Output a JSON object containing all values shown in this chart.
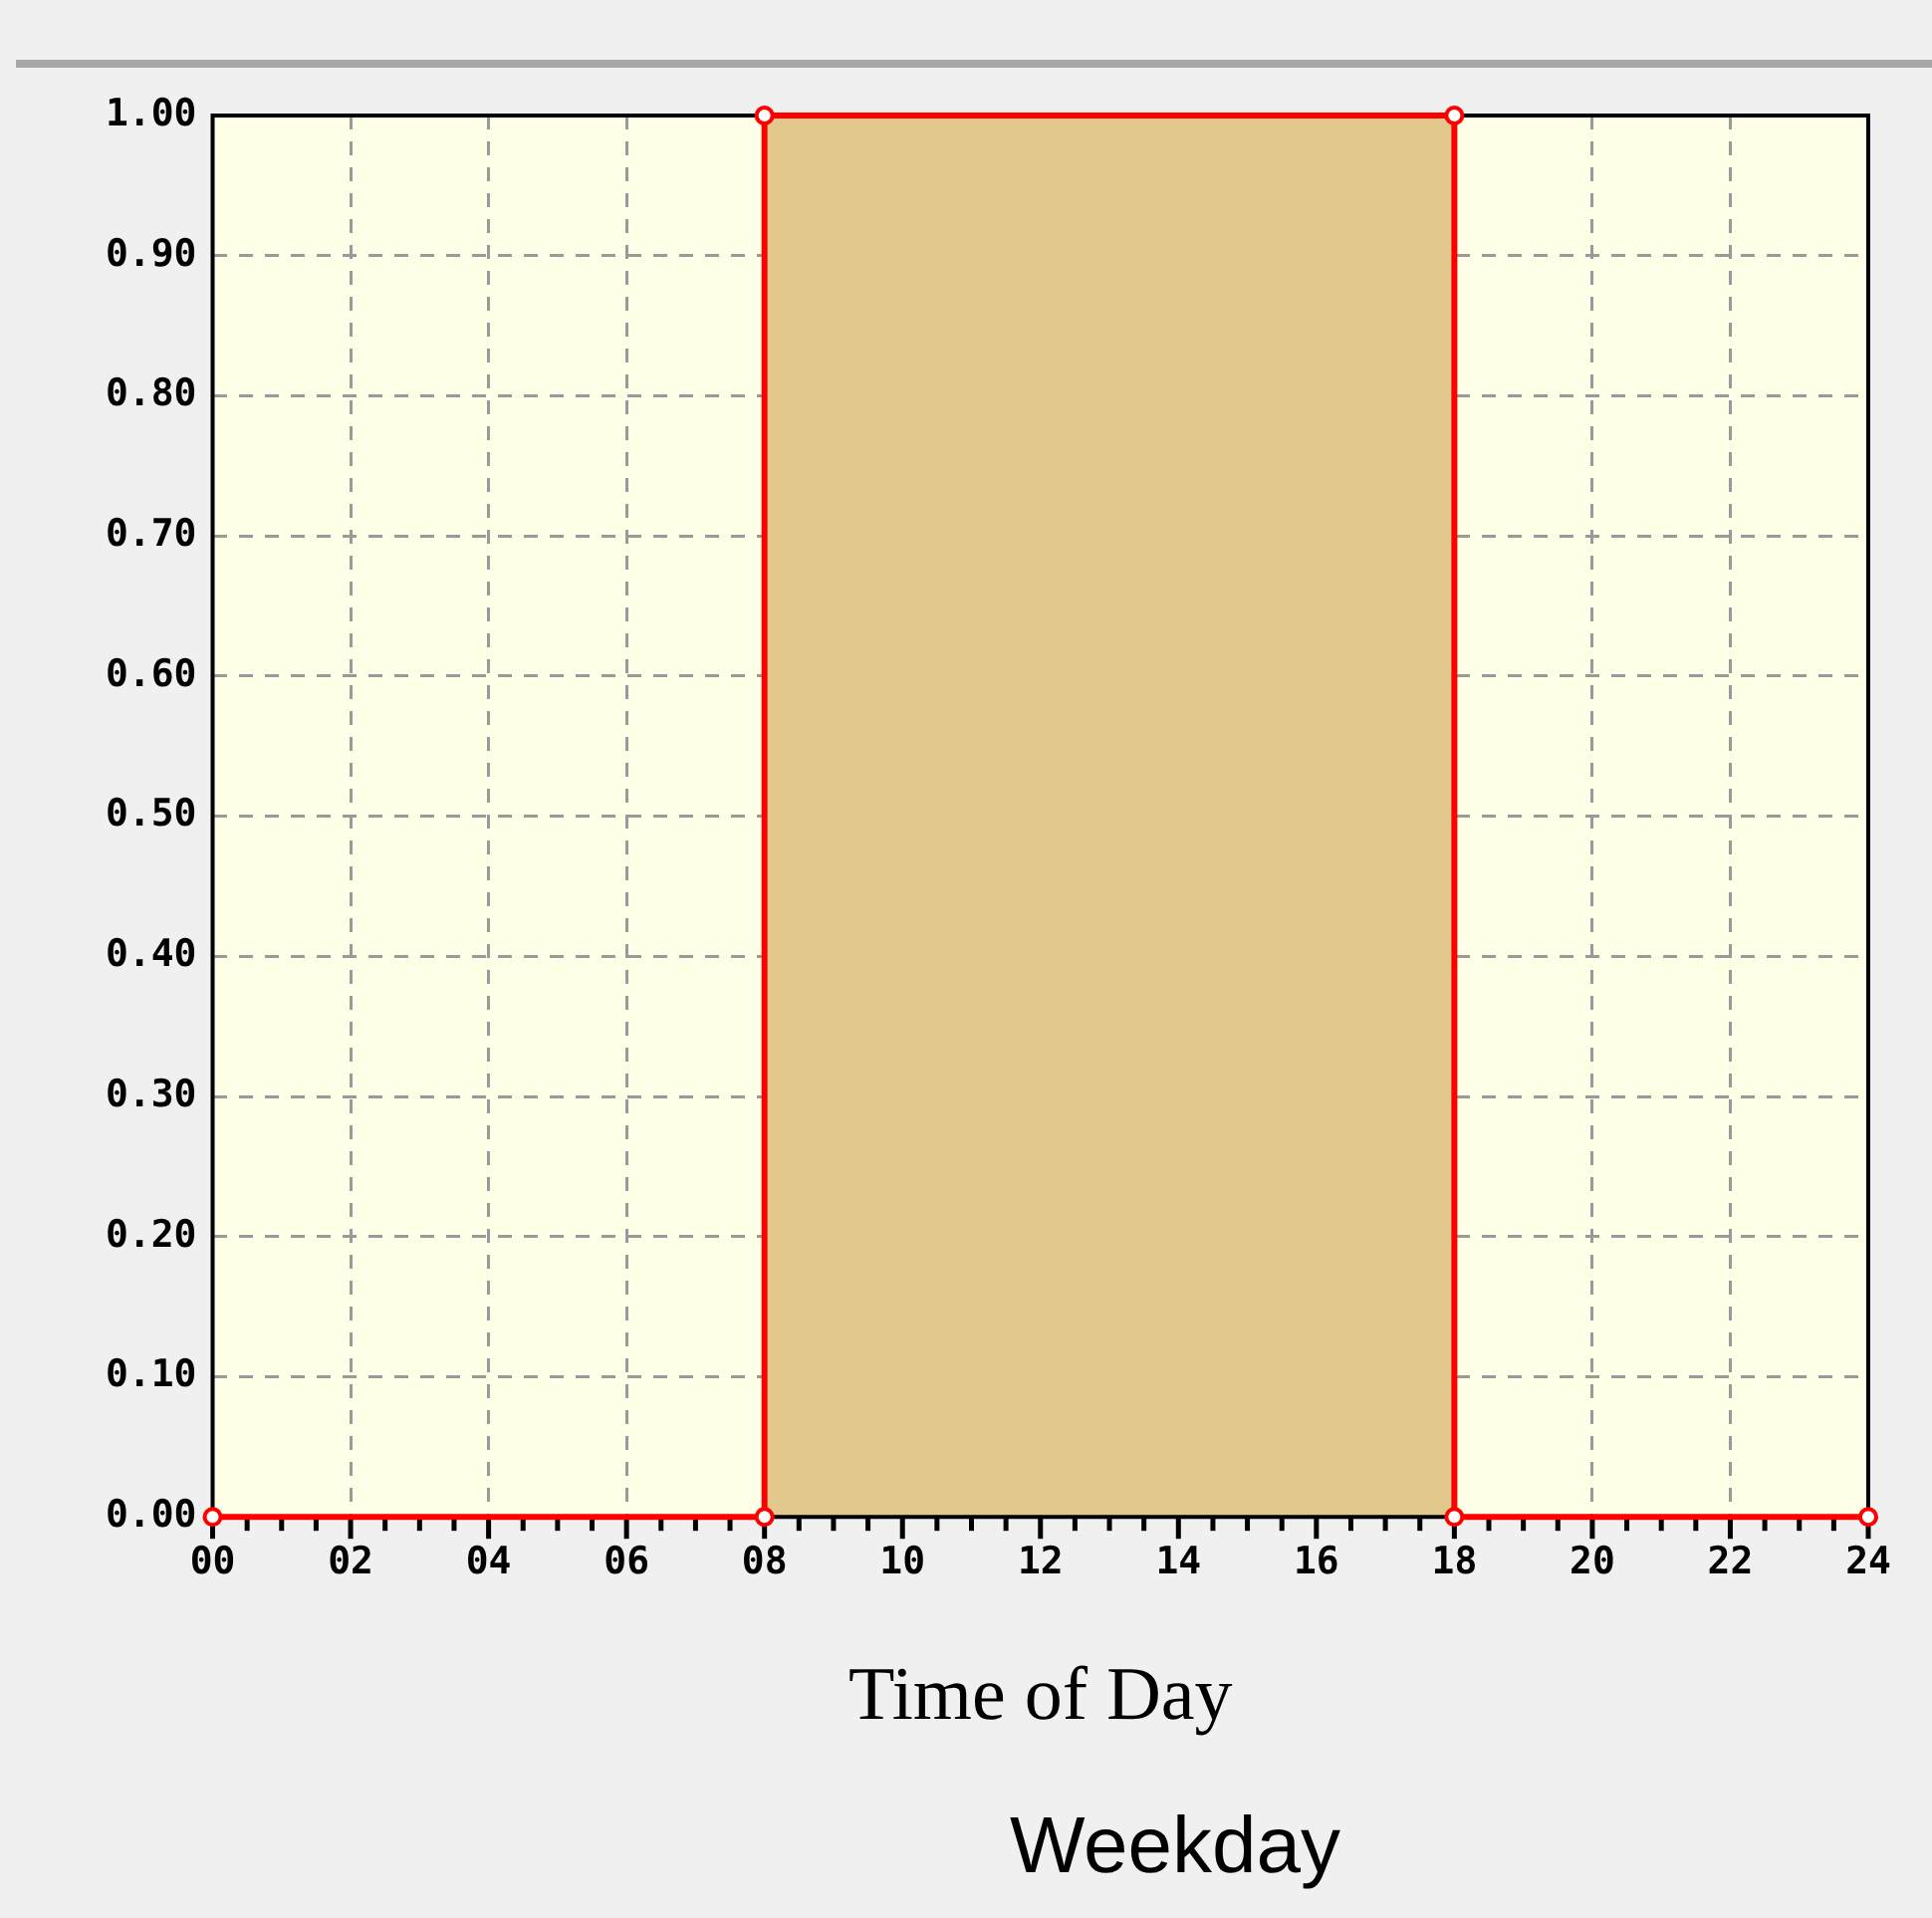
{
  "chart_data": {
    "type": "line",
    "xlabel": "Time of Day",
    "annotations": [
      "Weekday"
    ],
    "x": [
      0,
      8,
      8,
      18,
      18,
      24
    ],
    "series": [
      {
        "color": "#ff0000",
        "values": [
          0,
          0,
          1,
          1,
          0,
          0
        ]
      }
    ],
    "marker": "circle",
    "line_style": "solid",
    "grid": true,
    "legend": false,
    "bands": [
      {
        "axis": "x",
        "from": 8,
        "to": 18,
        "color": "#e3c88e"
      }
    ],
    "xlim": [
      0,
      24
    ],
    "xticks": [
      {
        "value": 0,
        "label": "00"
      },
      {
        "value": 0.5,
        "label": null
      },
      {
        "value": 1,
        "label": null
      },
      {
        "value": 1.5,
        "label": null
      },
      {
        "value": 2,
        "label": "02"
      },
      {
        "value": 2.5,
        "label": null
      },
      {
        "value": 3,
        "label": null
      },
      {
        "value": 3.5,
        "label": null
      },
      {
        "value": 4,
        "label": "04"
      },
      {
        "value": 4.5,
        "label": null
      },
      {
        "value": 5,
        "label": null
      },
      {
        "value": 5.5,
        "label": null
      },
      {
        "value": 6,
        "label": "06"
      },
      {
        "value": 6.5,
        "label": null
      },
      {
        "value": 7,
        "label": null
      },
      {
        "value": 7.5,
        "label": null
      },
      {
        "value": 8,
        "label": "08"
      },
      {
        "value": 8.5,
        "label": null
      },
      {
        "value": 9,
        "label": null
      },
      {
        "value": 9.5,
        "label": null
      },
      {
        "value": 10,
        "label": "10"
      },
      {
        "value": 10.5,
        "label": null
      },
      {
        "value": 11,
        "label": null
      },
      {
        "value": 11.5,
        "label": null
      },
      {
        "value": 12,
        "label": "12"
      },
      {
        "value": 12.5,
        "label": null
      },
      {
        "value": 13,
        "label": null
      },
      {
        "value": 13.5,
        "label": null
      },
      {
        "value": 14,
        "label": "14"
      },
      {
        "value": 14.5,
        "label": null
      },
      {
        "value": 15,
        "label": null
      },
      {
        "value": 15.5,
        "label": null
      },
      {
        "value": 16,
        "label": "16"
      },
      {
        "value": 16.5,
        "label": null
      },
      {
        "value": 17,
        "label": null
      },
      {
        "value": 17.5,
        "label": null
      },
      {
        "value": 18,
        "label": "18"
      },
      {
        "value": 18.5,
        "label": null
      },
      {
        "value": 19,
        "label": null
      },
      {
        "value": 19.5,
        "label": null
      },
      {
        "value": 20,
        "label": "20"
      },
      {
        "value": 20.5,
        "label": null
      },
      {
        "value": 21,
        "label": null
      },
      {
        "value": 21.5,
        "label": null
      },
      {
        "value": 22,
        "label": "22"
      },
      {
        "value": 22.5,
        "label": null
      },
      {
        "value": 23,
        "label": null
      },
      {
        "value": 23.5,
        "label": null
      },
      {
        "value": 24,
        "label": "24"
      }
    ],
    "ylim": [
      0,
      1
    ],
    "yticks": [
      {
        "value": 0,
        "label": "0.00"
      },
      {
        "value": 0.1,
        "label": "0.10"
      },
      {
        "value": 0.2,
        "label": "0.20"
      },
      {
        "value": 0.3,
        "label": "0.30"
      },
      {
        "value": 0.4,
        "label": "0.40"
      },
      {
        "value": 0.5,
        "label": "0.50"
      },
      {
        "value": 0.6,
        "label": "0.60"
      },
      {
        "value": 0.7,
        "label": "0.70"
      },
      {
        "value": 0.8,
        "label": "0.80"
      },
      {
        "value": 0.9,
        "label": "0.90"
      },
      {
        "value": 1,
        "label": "1.00"
      }
    ]
  }
}
